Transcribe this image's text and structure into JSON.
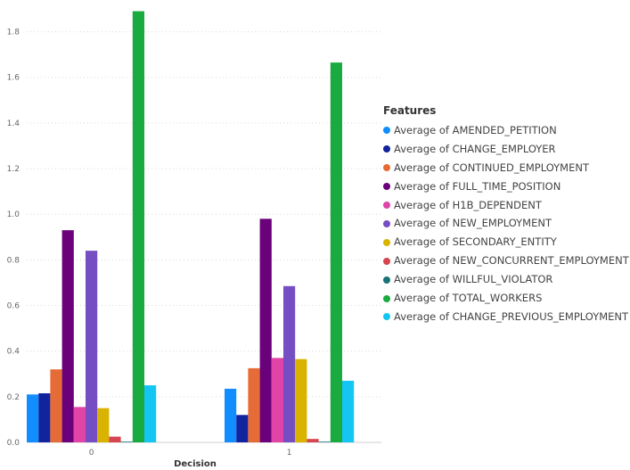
{
  "chart_data": {
    "type": "bar",
    "xlabel": "Decision",
    "ylabel": "",
    "ylim": [
      0,
      1.9
    ],
    "yticks": [
      0.0,
      0.2,
      0.4,
      0.6,
      0.8,
      1.0,
      1.2,
      1.4,
      1.6,
      1.8
    ],
    "grid": true,
    "categories": [
      "0",
      "1"
    ],
    "legend": {
      "title": "Features",
      "position": "right"
    },
    "series": [
      {
        "name": "Average of AMENDED_PETITION",
        "color": "#118dff",
        "values": [
          0.21,
          0.235
        ]
      },
      {
        "name": "Average of CHANGE_EMPLOYER",
        "color": "#12239e",
        "values": [
          0.215,
          0.12
        ]
      },
      {
        "name": "Average of CONTINUED_EMPLOYMENT",
        "color": "#e66c37",
        "values": [
          0.32,
          0.325
        ]
      },
      {
        "name": "Average of FULL_TIME_POSITION",
        "color": "#6b007b",
        "values": [
          0.93,
          0.98
        ]
      },
      {
        "name": "Average of H1B_DEPENDENT",
        "color": "#e044a7",
        "values": [
          0.155,
          0.37
        ]
      },
      {
        "name": "Average of NEW_EMPLOYMENT",
        "color": "#744ec2",
        "values": [
          0.84,
          0.685
        ]
      },
      {
        "name": "Average of SECONDARY_ENTITY",
        "color": "#d9b300",
        "values": [
          0.15,
          0.365
        ]
      },
      {
        "name": "Average of NEW_CONCURRENT_EMPLOYMENT",
        "color": "#d64550",
        "values": [
          0.025,
          0.015
        ]
      },
      {
        "name": "Average of WILLFUL_VIOLATOR",
        "color": "#197278",
        "values": [
          0.002,
          0.002
        ]
      },
      {
        "name": "Average of TOTAL_WORKERS",
        "color": "#1aab40",
        "values": [
          1.89,
          1.665
        ]
      },
      {
        "name": "Average of CHANGE_PREVIOUS_EMPLOYMENT",
        "color": "#15c6f4",
        "values": [
          0.25,
          0.27
        ]
      }
    ]
  }
}
